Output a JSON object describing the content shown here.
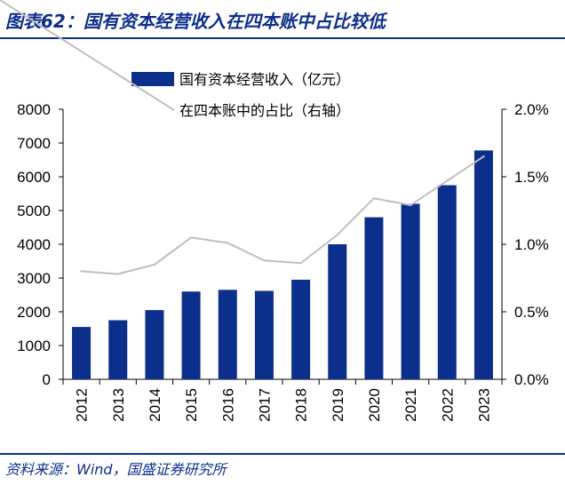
{
  "header": {
    "title": "图表62：国有资本经营收入在四本账中占比较低"
  },
  "footer": {
    "source": "资料来源：Wind，国盛证券研究所"
  },
  "colors": {
    "bar": "#0d2f8c",
    "line": "#bfbfbf",
    "accent": "#0d2f8c"
  },
  "chart_data": {
    "type": "bar",
    "categories": [
      "2012",
      "2013",
      "2014",
      "2015",
      "2016",
      "2017",
      "2018",
      "2019",
      "2020",
      "2021",
      "2022",
      "2023"
    ],
    "series": [
      {
        "name": "国有资本经营收入（亿元）",
        "type": "bar",
        "axis": "left",
        "values": [
          1550,
          1750,
          2050,
          2600,
          2650,
          2620,
          2950,
          4000,
          4800,
          5200,
          5750,
          6780
        ]
      },
      {
        "name": "在四本账中的占比（右轴）",
        "type": "line",
        "axis": "right",
        "values": [
          0.8,
          0.78,
          0.85,
          1.05,
          1.01,
          0.88,
          0.86,
          1.07,
          1.34,
          1.29,
          1.47,
          1.65
        ]
      }
    ],
    "ylim": [
      0,
      8000
    ],
    "yticks": [
      "0",
      "1000",
      "2000",
      "3000",
      "4000",
      "5000",
      "6000",
      "7000",
      "8000"
    ],
    "y2lim": [
      0,
      2.0
    ],
    "y2ticks": [
      "0.0%",
      "0.5%",
      "1.0%",
      "1.5%",
      "2.0%"
    ],
    "legend": "top-center",
    "grid": false
  }
}
